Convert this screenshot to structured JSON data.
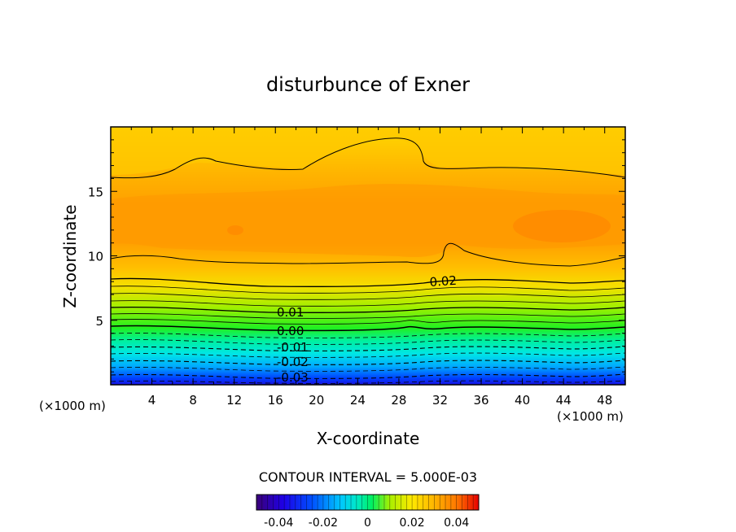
{
  "chart_data": {
    "type": "heatmap",
    "title": "disturbunce of Exner",
    "xlabel": "X-coordinate",
    "ylabel": "Z-coordinate",
    "x_unit": "(×1000 m)",
    "z_unit": "(×1000 m)",
    "xlim": [
      0,
      50
    ],
    "ylim": [
      0,
      20
    ],
    "x_ticks": [
      "4",
      "8",
      "12",
      "16",
      "20",
      "24",
      "28",
      "32",
      "36",
      "40",
      "44",
      "48"
    ],
    "y_ticks": [
      "5",
      "10",
      "15"
    ],
    "contour_interval_text": "CONTOUR INTERVAL = 5.000E-03",
    "contour_labels": [
      {
        "text": "0.02",
        "x": 32.4,
        "z": 8.0
      },
      {
        "text": "0.01",
        "x": 17.5,
        "z": 5.6
      },
      {
        "text": "0.00",
        "x": 17.5,
        "z": 4.2
      },
      {
        "text": "-0.01",
        "x": 18.5,
        "z": 2.9
      },
      {
        "text": "-0.02",
        "x": 18.5,
        "z": 1.7
      },
      {
        "text": "-0.03",
        "x": 18.5,
        "z": 0.5
      }
    ],
    "colorbar": {
      "range": [
        -0.05,
        0.05
      ],
      "tick_labels": [
        "-0.04",
        "-0.02",
        "0",
        "0.02",
        "0.04"
      ],
      "tick_values": [
        -0.04,
        -0.02,
        0,
        0.02,
        0.04
      ],
      "colors": [
        "#3a0078",
        "#1e00e6",
        "#0050ff",
        "#00c8ff",
        "#00e8c8",
        "#00f060",
        "#a8f000",
        "#ffe800",
        "#ffb400",
        "#ff7800",
        "#e60000"
      ]
    },
    "bands": [
      {
        "z": 0.0,
        "value": -0.045
      },
      {
        "z": 0.5,
        "value": -0.03
      },
      {
        "z": 1.7,
        "value": -0.02
      },
      {
        "z": 2.9,
        "value": -0.01
      },
      {
        "z": 4.2,
        "value": 0.0
      },
      {
        "z": 5.6,
        "value": 0.01
      },
      {
        "z": 8.0,
        "value": 0.02
      },
      {
        "z": 10.0,
        "value": 0.025
      },
      {
        "z": 13.0,
        "value": 0.03
      },
      {
        "z": 16.5,
        "value": 0.025
      },
      {
        "z": 20.0,
        "value": 0.02
      }
    ]
  }
}
